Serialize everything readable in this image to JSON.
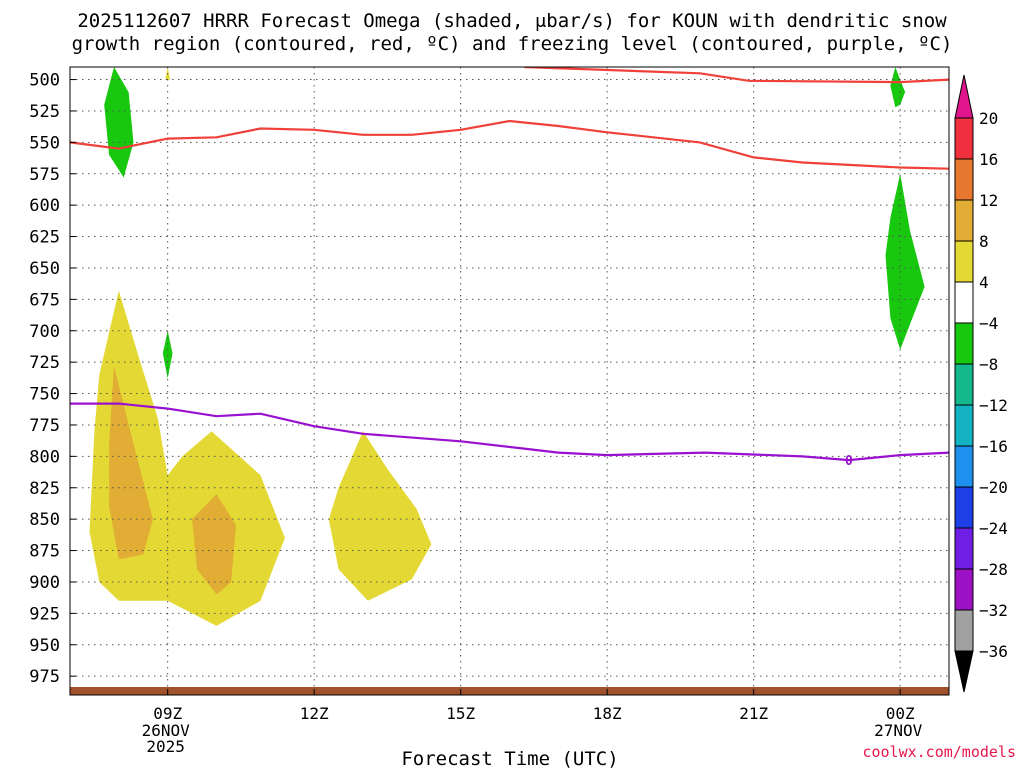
{
  "title_line1": "2025112607 HRRR Forecast Omega (shaded, μbar/s) for KOUN with dendritic snow",
  "title_line2": "growth region (contoured, red, ºC) and freezing level (contoured, purple, ºC)",
  "credit": "coolwx.com/models",
  "chart_data": {
    "type": "contour",
    "title": "2025112607 HRRR Forecast Omega (shaded, μbar/s) for KOUN with dendritic snow growth region (contoured, red, ºC) and freezing level (contoured, purple, ºC)",
    "xlabel": "Forecast Time (UTC)",
    "x_range_hours": [
      7,
      25
    ],
    "x_ticks": [
      {
        "hour": 9,
        "label": "09Z",
        "sub": [
          "26NOV",
          "2025"
        ]
      },
      {
        "hour": 12,
        "label": "12Z"
      },
      {
        "hour": 15,
        "label": "15Z"
      },
      {
        "hour": 18,
        "label": "18Z"
      },
      {
        "hour": 21,
        "label": "21Z"
      },
      {
        "hour": 24,
        "label": "00Z",
        "sub": [
          "27NOV"
        ]
      }
    ],
    "y_axis": "pressure (hPa)",
    "y_range": [
      490,
      990
    ],
    "y_ticks": [
      500,
      525,
      550,
      575,
      600,
      625,
      650,
      675,
      700,
      725,
      750,
      775,
      800,
      825,
      850,
      875,
      900,
      925,
      950,
      975
    ],
    "grid": true,
    "colorbar": {
      "units": "μbar/s",
      "labels": [
        "20",
        "16",
        "12",
        "8",
        "4",
        "−4",
        "−8",
        "−12",
        "−16",
        "−20",
        "−24",
        "−28",
        "−32",
        "−36"
      ],
      "colors": [
        "#f0303e",
        "#e87830",
        "#e2ad34",
        "#e4d934",
        "#ffffff",
        "#17c80f",
        "#14b88c",
        "#14b3c3",
        "#1e90ee",
        "#1e3fe6",
        "#6f1ee3",
        "#9c12c4",
        "#a0a0a0"
      ],
      "top_arrow_color": "#e0148c",
      "bottom_arrow_color": "#000000"
    },
    "dendritic_growth_contours_red": [
      {
        "level": "upper",
        "points": [
          [
            16.3,
            490
          ],
          [
            19.9,
            495
          ],
          [
            20.9,
            501
          ],
          [
            24.0,
            502
          ],
          [
            25.0,
            500
          ]
        ]
      },
      {
        "level": "lower",
        "points": [
          [
            7.0,
            550
          ],
          [
            8.0,
            555
          ],
          [
            9.0,
            547
          ],
          [
            10.0,
            546
          ],
          [
            10.9,
            539
          ],
          [
            12.0,
            540
          ],
          [
            13.0,
            544
          ],
          [
            14.0,
            544
          ],
          [
            15.0,
            540
          ],
          [
            16.0,
            533
          ],
          [
            17.0,
            537
          ],
          [
            18.0,
            542
          ],
          [
            19.9,
            550
          ],
          [
            21.0,
            562
          ],
          [
            22.0,
            566
          ],
          [
            23.0,
            568
          ],
          [
            24.0,
            570
          ],
          [
            25.0,
            571
          ]
        ]
      }
    ],
    "freezing_level_contour_purple": {
      "label": "0",
      "points": [
        [
          7.0,
          758
        ],
        [
          8.0,
          758
        ],
        [
          9.0,
          762
        ],
        [
          10.0,
          768
        ],
        [
          10.9,
          766
        ],
        [
          12.0,
          776
        ],
        [
          13.0,
          782
        ],
        [
          15.0,
          788
        ],
        [
          17.0,
          797
        ],
        [
          18.0,
          799
        ],
        [
          20.0,
          797
        ],
        [
          22.0,
          800
        ],
        [
          22.95,
          803
        ],
        [
          24.0,
          799
        ],
        [
          25.0,
          797
        ]
      ]
    },
    "omega_regions": [
      {
        "value_range": [
          4,
          8
        ],
        "color": "#e4d934",
        "points": [
          [
            8.0,
            668
          ],
          [
            8.4,
            720
          ],
          [
            8.8,
            770
          ],
          [
            9.0,
            815
          ],
          [
            9.3,
            800
          ],
          [
            9.9,
            780
          ],
          [
            10.9,
            815
          ],
          [
            11.4,
            865
          ],
          [
            10.9,
            915
          ],
          [
            10.0,
            935
          ],
          [
            9.0,
            915
          ],
          [
            8.0,
            915
          ],
          [
            7.6,
            900
          ],
          [
            7.4,
            860
          ],
          [
            7.5,
            780
          ],
          [
            7.6,
            735
          ]
        ]
      },
      {
        "value_range": [
          4,
          8
        ],
        "color": "#e4d934",
        "points": [
          [
            13.0,
            780
          ],
          [
            13.5,
            810
          ],
          [
            14.1,
            842
          ],
          [
            14.4,
            870
          ],
          [
            14.0,
            898
          ],
          [
            13.1,
            915
          ],
          [
            12.5,
            890
          ],
          [
            12.3,
            850
          ],
          [
            12.5,
            825
          ]
        ]
      },
      {
        "value_range": [
          8,
          12
        ],
        "color": "#e2ad34",
        "points": [
          [
            7.9,
            728
          ],
          [
            8.3,
            790
          ],
          [
            8.7,
            850
          ],
          [
            8.5,
            878
          ],
          [
            8.0,
            882
          ],
          [
            7.8,
            840
          ],
          [
            7.8,
            790
          ]
        ]
      },
      {
        "value_range": [
          8,
          12
        ],
        "color": "#e2ad34",
        "points": [
          [
            10.0,
            830
          ],
          [
            10.4,
            855
          ],
          [
            10.3,
            900
          ],
          [
            10.0,
            910
          ],
          [
            9.6,
            890
          ],
          [
            9.5,
            850
          ]
        ]
      },
      {
        "value_range": [
          4,
          8
        ],
        "color": "#e4d934",
        "points": [
          [
            9.0,
            490
          ],
          [
            9.05,
            500
          ],
          [
            8.95,
            500
          ]
        ]
      },
      {
        "value_range": [
          -8,
          -4
        ],
        "color": "#17c80f",
        "points": [
          [
            7.9,
            490
          ],
          [
            8.2,
            510
          ],
          [
            8.3,
            550
          ],
          [
            8.1,
            578
          ],
          [
            7.8,
            560
          ],
          [
            7.7,
            520
          ]
        ]
      },
      {
        "value_range": [
          -8,
          -4
        ],
        "color": "#17c80f",
        "points": [
          [
            9.0,
            700
          ],
          [
            9.1,
            718
          ],
          [
            9.0,
            738
          ],
          [
            8.9,
            718
          ]
        ]
      },
      {
        "value_range": [
          -8,
          -4
        ],
        "color": "#17c80f",
        "points": [
          [
            23.9,
            490
          ],
          [
            24.1,
            510
          ],
          [
            24.0,
            520
          ],
          [
            23.9,
            522
          ],
          [
            23.8,
            505
          ]
        ]
      },
      {
        "value_range": [
          -8,
          -4
        ],
        "color": "#17c80f",
        "points": [
          [
            24.0,
            575
          ],
          [
            24.2,
            620
          ],
          [
            24.5,
            665
          ],
          [
            24.2,
            695
          ],
          [
            24.0,
            715
          ],
          [
            23.8,
            690
          ],
          [
            23.7,
            640
          ],
          [
            23.8,
            610
          ]
        ]
      }
    ],
    "surface_strip_color": "#a0522d"
  }
}
